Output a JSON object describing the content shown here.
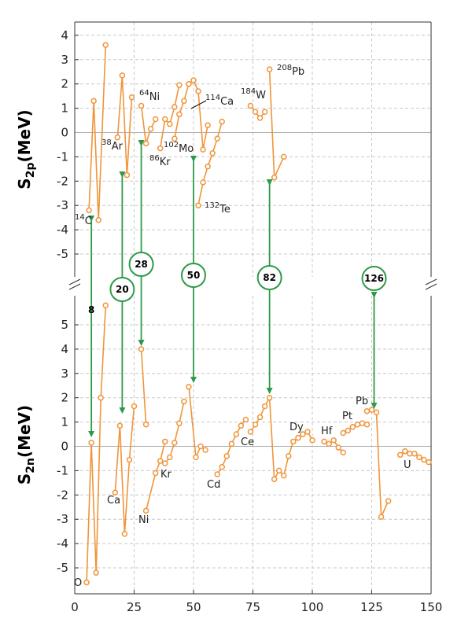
{
  "chart_data": {
    "type": "line",
    "colors": {
      "series": "#f0953a",
      "arrow": "#2e9a48",
      "grid": "#c8c8c8",
      "axis": "#333333"
    },
    "x_axis": {
      "range": [
        0,
        150
      ],
      "ticks": [
        0,
        25,
        50,
        75,
        100,
        125,
        150
      ]
    },
    "panels": [
      {
        "id": "s2p",
        "ylabel": {
          "main": "S",
          "sub": "2p",
          "unit": "(MeV)"
        },
        "ylim": [
          -6.0,
          4.7
        ],
        "yticks": [
          -5,
          -4,
          -3,
          -2,
          -1,
          0,
          1,
          2,
          3,
          4
        ],
        "grid": true,
        "series": [
          {
            "points": [
              [
                6,
                -3.2
              ],
              [
                8,
                1.3
              ],
              [
                10,
                -3.6
              ],
              [
                13,
                3.6
              ]
            ]
          },
          {
            "points": [
              [
                18,
                -0.2
              ],
              [
                20,
                2.35
              ],
              [
                22,
                -1.75
              ],
              [
                24,
                1.45
              ]
            ]
          },
          {
            "points": [
              [
                28,
                1.1
              ],
              [
                30,
                -0.45
              ],
              [
                32,
                0.15
              ],
              [
                34,
                0.55
              ]
            ]
          },
          {
            "points": [
              [
                36,
                -0.65
              ],
              [
                38,
                0.55
              ],
              [
                40,
                0.35
              ],
              [
                42,
                1.05
              ],
              [
                44,
                1.95
              ]
            ]
          },
          {
            "points": [
              [
                42,
                -0.25
              ],
              [
                44,
                0.75
              ],
              [
                46,
                1.3
              ],
              [
                48,
                2.0
              ],
              [
                50,
                2.15
              ],
              [
                52,
                1.7
              ],
              [
                54,
                -0.7
              ],
              [
                56,
                0.3
              ]
            ]
          },
          {
            "points": [
              [
                52,
                -3.0
              ],
              [
                54,
                -2.05
              ],
              [
                56,
                -1.4
              ],
              [
                58,
                -0.85
              ],
              [
                60,
                -0.25
              ],
              [
                62,
                0.45
              ]
            ]
          },
          {
            "points": [
              [
                74,
                1.1
              ],
              [
                76,
                0.85
              ],
              [
                78,
                0.6
              ],
              [
                80,
                0.85
              ]
            ]
          },
          {
            "points": [
              [
                82,
                2.6
              ],
              [
                84,
                -1.85
              ],
              [
                88,
                -1.0
              ]
            ]
          }
        ],
        "annotations": [
          {
            "sup": "14",
            "text": "C"
          },
          {
            "sup": "38",
            "text": "Ar"
          },
          {
            "sup": "64",
            "text": "Ni"
          },
          {
            "sup": "86",
            "text": "Kr"
          },
          {
            "sup": "102",
            "text": "Mo"
          },
          {
            "sup": "114",
            "text": "Ca"
          },
          {
            "sup": "132",
            "text": "Te"
          },
          {
            "sup": "184",
            "text": "W"
          },
          {
            "sup": "208",
            "text": "Pb"
          }
        ]
      },
      {
        "id": "s2n",
        "ylabel": {
          "main": "S",
          "sub": "2n",
          "unit": "(MeV)"
        },
        "ylim": [
          -5.8,
          6.1
        ],
        "yticks": [
          -5,
          -4,
          -3,
          -2,
          -1,
          0,
          1,
          2,
          3,
          4,
          5
        ],
        "grid": true,
        "series": [
          {
            "points": [
              [
                5,
                -5.6
              ],
              [
                7,
                0.15
              ],
              [
                9,
                -5.2
              ],
              [
                11,
                2.0
              ],
              [
                13,
                5.8
              ]
            ]
          },
          {
            "points": [
              [
                17,
                -1.9
              ],
              [
                19,
                0.85
              ],
              [
                21,
                -3.6
              ],
              [
                23,
                -0.55
              ],
              [
                25,
                1.65
              ]
            ]
          },
          {
            "points": [
              [
                28,
                4.0
              ],
              [
                30,
                0.9
              ]
            ]
          },
          {
            "points": [
              [
                30,
                -2.65
              ],
              [
                34,
                -1.1
              ],
              [
                36,
                -0.6
              ],
              [
                38,
                0.2
              ]
            ]
          },
          {
            "points": [
              [
                38,
                -0.7
              ],
              [
                40,
                -0.45
              ],
              [
                42,
                0.15
              ],
              [
                44,
                0.95
              ],
              [
                46,
                1.85
              ]
            ]
          },
          {
            "points": [
              [
                48,
                2.45
              ],
              [
                51,
                -0.45
              ],
              [
                53,
                0.0
              ],
              [
                55,
                -0.15
              ]
            ]
          },
          {
            "points": [
              [
                60,
                -1.15
              ],
              [
                62,
                -0.85
              ],
              [
                64,
                -0.4
              ],
              [
                66,
                0.1
              ],
              [
                68,
                0.5
              ],
              [
                70,
                0.85
              ],
              [
                72,
                1.1
              ]
            ]
          },
          {
            "points": [
              [
                74,
                0.6
              ],
              [
                76,
                0.9
              ],
              [
                78,
                1.2
              ],
              [
                80,
                1.65
              ],
              [
                82,
                2.0
              ],
              [
                84,
                -1.35
              ],
              [
                86,
                -1.0
              ],
              [
                88,
                -1.2
              ],
              [
                90,
                -0.4
              ],
              [
                92,
                0.2
              ],
              [
                94,
                0.35
              ],
              [
                96,
                0.5
              ],
              [
                98,
                0.6
              ],
              [
                100,
                0.25
              ]
            ]
          },
          {
            "points": [
              [
                105,
                0.2
              ],
              [
                107,
                0.1
              ],
              [
                109,
                0.25
              ],
              [
                111,
                -0.05
              ],
              [
                113,
                -0.25
              ]
            ]
          },
          {
            "points": [
              [
                113,
                0.55
              ],
              [
                115,
                0.65
              ],
              [
                117,
                0.8
              ],
              [
                119,
                0.9
              ],
              [
                121,
                0.95
              ],
              [
                123,
                0.9
              ]
            ]
          },
          {
            "points": [
              [
                123,
                1.45
              ],
              [
                125,
                1.5
              ],
              [
                127,
                1.4
              ],
              [
                129,
                -2.9
              ],
              [
                132,
                -2.25
              ]
            ]
          },
          {
            "points": [
              [
                137,
                -0.35
              ],
              [
                139,
                -0.2
              ],
              [
                141,
                -0.3
              ],
              [
                143,
                -0.3
              ],
              [
                145,
                -0.45
              ],
              [
                147,
                -0.55
              ],
              [
                149,
                -0.65
              ]
            ]
          }
        ],
        "annotations": [
          {
            "text": "O"
          },
          {
            "text": "Ca"
          },
          {
            "text": "Ni"
          },
          {
            "text": "Kr"
          },
          {
            "text": "Cd"
          },
          {
            "text": "Ce"
          },
          {
            "text": "Dy"
          },
          {
            "text": "Hf"
          },
          {
            "text": "Pt"
          },
          {
            "text": "Pb"
          },
          {
            "text": "U"
          }
        ]
      }
    ],
    "magic_numbers": [
      {
        "label": "8",
        "x": 7
      },
      {
        "label": "20",
        "x": 20
      },
      {
        "label": "28",
        "x": 28
      },
      {
        "label": "50",
        "x": 50
      },
      {
        "label": "82",
        "x": 82
      },
      {
        "label": "126",
        "x": 126
      }
    ]
  }
}
